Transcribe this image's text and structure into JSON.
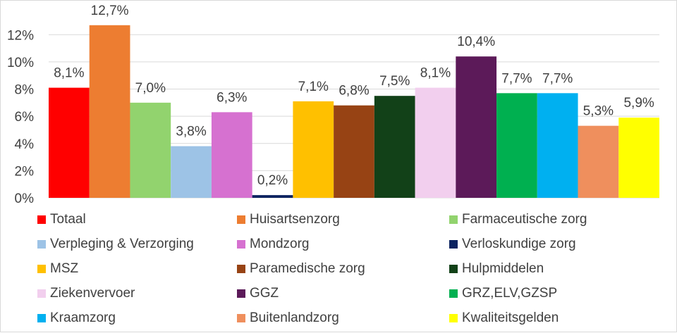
{
  "chart_data": {
    "type": "bar",
    "categories": [
      "Totaal",
      "Huisartsenzorg",
      "Farmaceutische zorg",
      "Verpleging & Verzorging",
      "Mondzorg",
      "Verloskundige zorg",
      "MSZ",
      "Paramedische zorg",
      "Hulpmiddelen",
      "Ziekenvervoer",
      "GGZ",
      "GRZ,ELV,GZSP",
      "Kraamzorg",
      "Buitenlandzorg",
      "Kwaliteitsgelden"
    ],
    "values": [
      8.1,
      12.7,
      7.0,
      3.8,
      6.3,
      0.2,
      7.1,
      6.8,
      7.5,
      8.1,
      10.4,
      7.7,
      7.7,
      5.3,
      5.9
    ],
    "data_labels": [
      "8,1%",
      "12,7%",
      "7,0%",
      "3,8%",
      "6,3%",
      "0,2%",
      "7,1%",
      "6,8%",
      "7,5%",
      "8,1%",
      "10,4%",
      "7,7%",
      "7,7%",
      "5,3%",
      "5,9%"
    ],
    "colors": [
      "#ff0000",
      "#ed7d31",
      "#92d36e",
      "#9dc3e6",
      "#d671d0",
      "#0b2360",
      "#ffc000",
      "#974314",
      "#124118",
      "#f2cfee",
      "#5c1a59",
      "#00b050",
      "#00b0f0",
      "#ef8f5d",
      "#ffff00"
    ],
    "y_ticks": [
      "0%",
      "2%",
      "4%",
      "6%",
      "8%",
      "10%",
      "12%"
    ],
    "ylim": [
      0,
      13
    ],
    "gridlines": true,
    "legend": "bottom"
  }
}
